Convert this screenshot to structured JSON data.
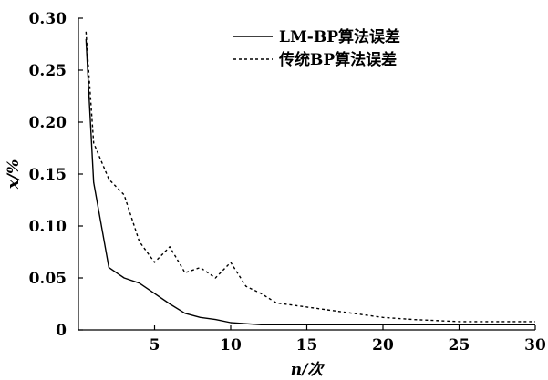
{
  "chart_data": {
    "type": "line",
    "title": "",
    "xlabel": "n/次",
    "ylabel": "x/%",
    "xlim": [
      0,
      30
    ],
    "ylim": [
      0,
      0.3
    ],
    "x_ticks": [
      "5",
      "10",
      "15",
      "20",
      "25",
      "30"
    ],
    "y_ticks": [
      "0",
      "0.05",
      "0.10",
      "0.15",
      "0.20",
      "0.25",
      "0.30"
    ],
    "grid": false,
    "legend_position": "top-right",
    "series": [
      {
        "name": "LM-BP算法误差",
        "style": "solid",
        "color": "#000000",
        "x": [
          0.5,
          1,
          2,
          3,
          4,
          5,
          6,
          7,
          8,
          9,
          10,
          11,
          12,
          13,
          15,
          20,
          25,
          30
        ],
        "y": [
          0.28,
          0.142,
          0.06,
          0.05,
          0.045,
          0.035,
          0.025,
          0.016,
          0.012,
          0.01,
          0.007,
          0.006,
          0.005,
          0.005,
          0.005,
          0.005,
          0.005,
          0.005
        ]
      },
      {
        "name": "传统BP算法误差",
        "style": "dashed",
        "color": "#000000",
        "x": [
          0.5,
          1,
          2,
          3,
          4,
          5,
          6,
          7,
          8,
          9,
          10,
          11,
          12,
          13,
          15,
          17,
          20,
          22,
          25,
          30
        ],
        "y": [
          0.287,
          0.18,
          0.145,
          0.13,
          0.085,
          0.065,
          0.08,
          0.055,
          0.06,
          0.05,
          0.065,
          0.042,
          0.035,
          0.026,
          0.022,
          0.018,
          0.012,
          0.01,
          0.008,
          0.008
        ]
      }
    ]
  }
}
